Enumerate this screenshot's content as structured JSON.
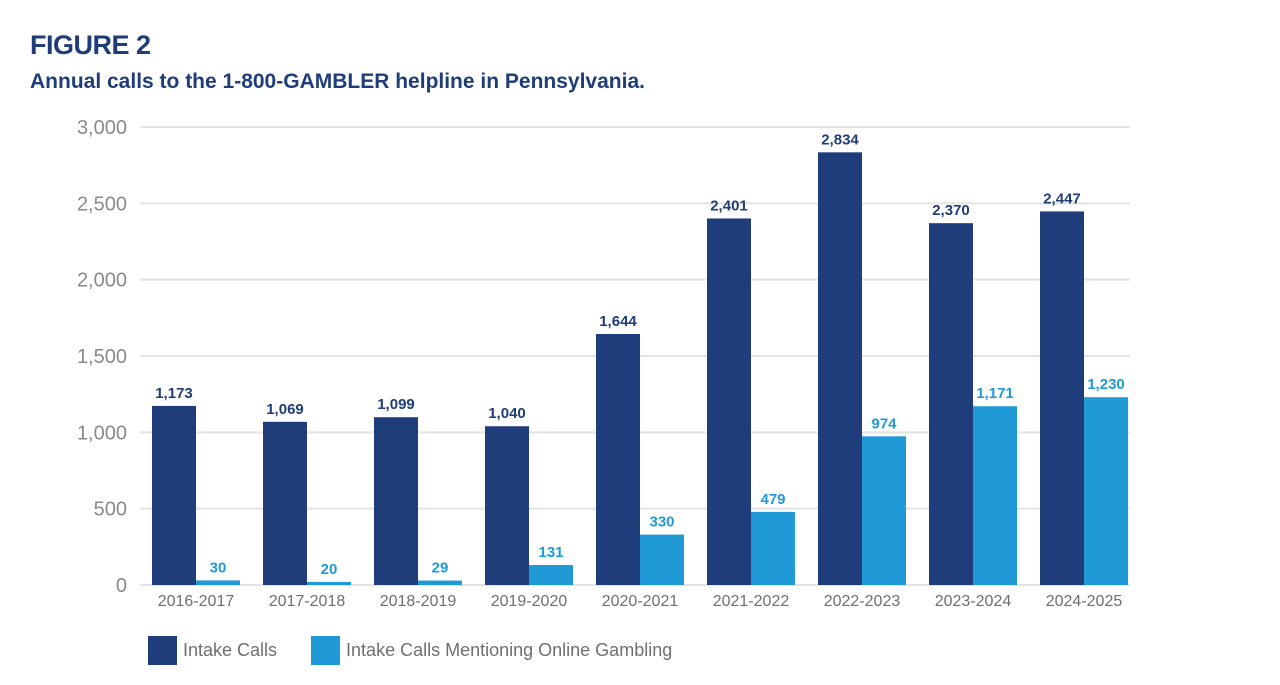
{
  "header": {
    "figure_label": "FIGURE 2",
    "title": "Annual calls to the 1-800-GAMBLER helpline in Pennsylvania."
  },
  "colors": {
    "title": "#1f3d7a",
    "intake": "#1f3d7a",
    "online": "#1f9ad6",
    "grid": "#e3e3e3",
    "axis_text": "#8a8a8a"
  },
  "chart_data": {
    "type": "bar",
    "title": "Annual calls to the 1-800-GAMBLER helpline in Pennsylvania.",
    "xlabel": "",
    "ylabel": "",
    "ylim": [
      0,
      3000
    ],
    "yticks": [
      0,
      500,
      1000,
      1500,
      2000,
      2500,
      3000
    ],
    "ytick_labels": [
      "0",
      "500",
      "1,000",
      "1,500",
      "2,000",
      "2,500",
      "3,000"
    ],
    "grid": true,
    "legend_position": "bottom-left",
    "categories": [
      "2016-2017",
      "2017-2018",
      "2018-2019",
      "2019-2020",
      "2020-2021",
      "2021-2022",
      "2022-2023",
      "2023-2024",
      "2024-2025"
    ],
    "series": [
      {
        "name": "Intake Calls",
        "color": "#1f3d7a",
        "values": [
          1173,
          1069,
          1099,
          1040,
          1644,
          2401,
          2834,
          2370,
          2447
        ],
        "labels": [
          "1,173",
          "1,069",
          "1,099",
          "1,040",
          "1,644",
          "2,401",
          "2,834",
          "2,370",
          "2,447"
        ]
      },
      {
        "name": "Intake Calls Mentioning Online Gambling",
        "color": "#1f9ad6",
        "values": [
          30,
          20,
          29,
          131,
          330,
          479,
          974,
          1171,
          1230
        ],
        "labels": [
          "30",
          "20",
          "29",
          "131",
          "330",
          "479",
          "974",
          "1,171",
          "1,230"
        ]
      }
    ]
  }
}
